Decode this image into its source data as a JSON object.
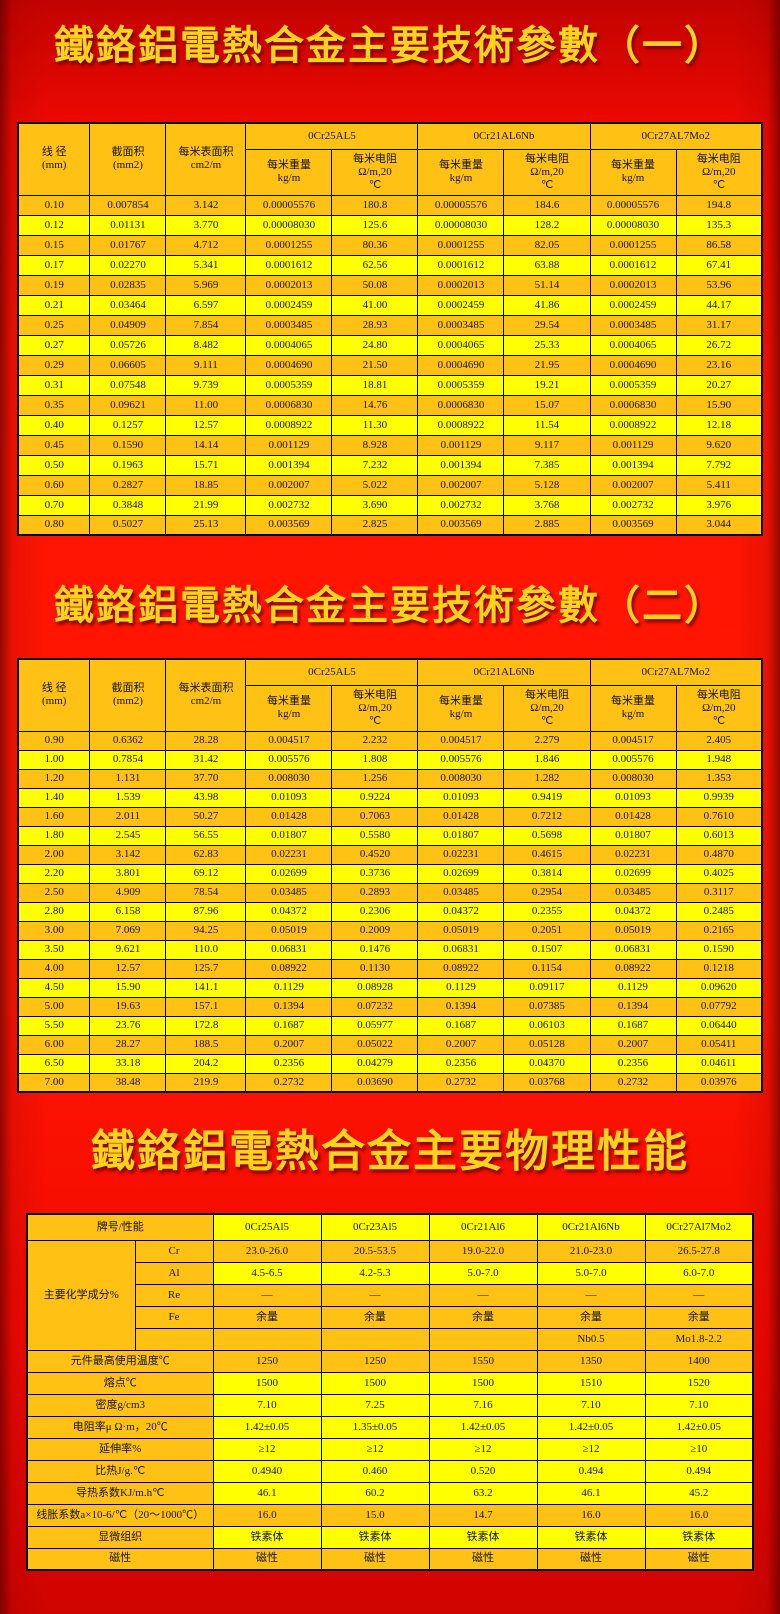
{
  "colors": {
    "background_red": "#EE0900",
    "title_gold": "#FFD21E",
    "row_yellow": "#FFFF00",
    "row_orange": "#FFC114",
    "border_black": "#000000"
  },
  "titles": {
    "section1": "鐵鉻鋁電熱合金主要技術參數（一）",
    "section2": "鐵鉻鋁電熱合金主要技術參數（二）",
    "section3": "鐵鉻鋁電熱合金主要物理性能"
  },
  "param_header": {
    "wire_diameter": "线 径\n(mm)",
    "cross_section": "截面积\n(mm2)",
    "surface_area_per_m": "每米表面积\ncm2/m",
    "groups": [
      "0Cr25AL5",
      "0Cr21AL6Nb",
      "0Cr27AL7Mo2"
    ],
    "weight_per_m": "每米重量\nkg/m",
    "resistance_per_m": "每米电阻\nΩ/m,20\n℃"
  },
  "table1": {
    "rows": [
      [
        "0.10",
        "0.007854",
        "3.142",
        "0.00005576",
        "180.8",
        "0.00005576",
        "184.6",
        "0.00005576",
        "194.8"
      ],
      [
        "0.12",
        "0.01131",
        "3.770",
        "0.00008030",
        "125.6",
        "0.00008030",
        "128.2",
        "0.00008030",
        "135.3"
      ],
      [
        "0.15",
        "0.01767",
        "4.712",
        "0.0001255",
        "80.36",
        "0.0001255",
        "82.05",
        "0.0001255",
        "86.58"
      ],
      [
        "0.17",
        "0.02270",
        "5.341",
        "0.0001612",
        "62.56",
        "0.0001612",
        "63.88",
        "0.0001612",
        "67.41"
      ],
      [
        "0.19",
        "0.02835",
        "5.969",
        "0.0002013",
        "50.08",
        "0.0002013",
        "51.14",
        "0.0002013",
        "53.96"
      ],
      [
        "0.21",
        "0.03464",
        "6.597",
        "0.0002459",
        "41.00",
        "0.0002459",
        "41.86",
        "0.0002459",
        "44.17"
      ],
      [
        "0.25",
        "0.04909",
        "7.854",
        "0.0003485",
        "28.93",
        "0.0003485",
        "29.54",
        "0.0003485",
        "31.17"
      ],
      [
        "0.27",
        "0.05726",
        "8.482",
        "0.0004065",
        "24.80",
        "0.0004065",
        "25.33",
        "0.0004065",
        "26.72"
      ],
      [
        "0.29",
        "0.06605",
        "9.111",
        "0.0004690",
        "21.50",
        "0.0004690",
        "21.95",
        "0.0004690",
        "23.16"
      ],
      [
        "0.31",
        "0.07548",
        "9.739",
        "0.0005359",
        "18.81",
        "0.0005359",
        "19.21",
        "0.0005359",
        "20.27"
      ],
      [
        "0.35",
        "0.09621",
        "11.00",
        "0.0006830",
        "14.76",
        "0.0006830",
        "15.07",
        "0.0006830",
        "15.90"
      ],
      [
        "0.40",
        "0.1257",
        "12.57",
        "0.0008922",
        "11.30",
        "0.0008922",
        "11.54",
        "0.0008922",
        "12.18"
      ],
      [
        "0.45",
        "0.1590",
        "14.14",
        "0.001129",
        "8.928",
        "0.001129",
        "9.117",
        "0.001129",
        "9.620"
      ],
      [
        "0.50",
        "0.1963",
        "15.71",
        "0.001394",
        "7.232",
        "0.001394",
        "7.385",
        "0.001394",
        "7.792"
      ],
      [
        "0.60",
        "0.2827",
        "18.85",
        "0.002007",
        "5.022",
        "0.002007",
        "5.128",
        "0.002007",
        "5.411"
      ],
      [
        "0.70",
        "0.3848",
        "21.99",
        "0.002732",
        "3.690",
        "0.002732",
        "3.768",
        "0.002732",
        "3.976"
      ],
      [
        "0.80",
        "0.5027",
        "25.13",
        "0.003569",
        "2.825",
        "0.003569",
        "2.885",
        "0.003569",
        "3.044"
      ]
    ]
  },
  "table2": {
    "rows": [
      [
        "0.90",
        "0.6362",
        "28.28",
        "0.004517",
        "2.232",
        "0.004517",
        "2.279",
        "0.004517",
        "2.405"
      ],
      [
        "1.00",
        "0.7854",
        "31.42",
        "0.005576",
        "1.808",
        "0.005576",
        "1.846",
        "0.005576",
        "1.948"
      ],
      [
        "1.20",
        "1.131",
        "37.70",
        "0.008030",
        "1.256",
        "0.008030",
        "1.282",
        "0.008030",
        "1.353"
      ],
      [
        "1.40",
        "1.539",
        "43.98",
        "0.01093",
        "0.9224",
        "0.01093",
        "0.9419",
        "0.01093",
        "0.9939"
      ],
      [
        "1.60",
        "2.011",
        "50.27",
        "0.01428",
        "0.7063",
        "0.01428",
        "0.7212",
        "0.01428",
        "0.7610"
      ],
      [
        "1.80",
        "2.545",
        "56.55",
        "0.01807",
        "0.5580",
        "0.01807",
        "0.5698",
        "0.01807",
        "0.6013"
      ],
      [
        "2.00",
        "3.142",
        "62.83",
        "0.02231",
        "0.4520",
        "0.02231",
        "0.4615",
        "0.02231",
        "0.4870"
      ],
      [
        "2.20",
        "3.801",
        "69.12",
        "0.02699",
        "0.3736",
        "0.02699",
        "0.3814",
        "0.02699",
        "0.4025"
      ],
      [
        "2.50",
        "4.909",
        "78.54",
        "0.03485",
        "0.2893",
        "0.03485",
        "0.2954",
        "0.03485",
        "0.3117"
      ],
      [
        "2.80",
        "6.158",
        "87.96",
        "0.04372",
        "0.2306",
        "0.04372",
        "0.2355",
        "0.04372",
        "0.2485"
      ],
      [
        "3.00",
        "7.069",
        "94.25",
        "0.05019",
        "0.2009",
        "0.05019",
        "0.2051",
        "0.05019",
        "0.2165"
      ],
      [
        "3.50",
        "9.621",
        "110.0",
        "0.06831",
        "0.1476",
        "0.06831",
        "0.1507",
        "0.06831",
        "0.1590"
      ],
      [
        "4.00",
        "12.57",
        "125.7",
        "0.08922",
        "0.1130",
        "0.08922",
        "0.1154",
        "0.08922",
        "0.1218"
      ],
      [
        "4.50",
        "15.90",
        "141.1",
        "0.1129",
        "0.08928",
        "0.1129",
        "0.09117",
        "0.1129",
        "0.09620"
      ],
      [
        "5.00",
        "19.63",
        "157.1",
        "0.1394",
        "0.07232",
        "0.1394",
        "0.07385",
        "0.1394",
        "0.07792"
      ],
      [
        "5.50",
        "23.76",
        "172.8",
        "0.1687",
        "0.05977",
        "0.1687",
        "0.06103",
        "0.1687",
        "0.06440"
      ],
      [
        "6.00",
        "28.27",
        "188.5",
        "0.2007",
        "0.05022",
        "0.2007",
        "0.05128",
        "0.2007",
        "0.05411"
      ],
      [
        "6.50",
        "33.18",
        "204.2",
        "0.2356",
        "0.04279",
        "0.2356",
        "0.04370",
        "0.2356",
        "0.04611"
      ],
      [
        "7.00",
        "38.48",
        "219.9",
        "0.2732",
        "0.03690",
        "0.2732",
        "0.03768",
        "0.2732",
        "0.03976"
      ]
    ]
  },
  "table3": {
    "corner_label": "牌号/性能",
    "grades": [
      "0Cr25Al5",
      "0Cr23Al5",
      "0Cr21Al6",
      "0Cr21Al6Nb",
      "0Cr27Al7Mo2"
    ],
    "chemistry_label": "主要化学成分%",
    "chem_rows": [
      {
        "element": "Cr",
        "shade": "o",
        "values": [
          "23.0-26.0",
          "20.5-53.5",
          "19.0-22.0",
          "21.0-23.0",
          "26.5-27.8"
        ]
      },
      {
        "element": "Al",
        "shade": "y",
        "values": [
          "4.5-6.5",
          "4.2-5.3",
          "5.0-7.0",
          "5.0-7.0",
          "6.0-7.0"
        ]
      },
      {
        "element": "Re",
        "shade": "o",
        "values": [
          "—",
          "—",
          "—",
          "—",
          "—"
        ]
      },
      {
        "element": "Fe",
        "shade": "o",
        "values": [
          "余量",
          "余量",
          "余量",
          "余量",
          "余量"
        ]
      },
      {
        "element": "",
        "shade": "o",
        "values": [
          "",
          "",
          "",
          "Nb0.5",
          "Mo1.8-2.2"
        ]
      }
    ],
    "property_rows": [
      {
        "label": "元件最高使用温度℃",
        "shade": "o",
        "values": [
          "1250",
          "1250",
          "1550",
          "1350",
          "1400"
        ]
      },
      {
        "label": "熔点℃",
        "shade": "y",
        "values": [
          "1500",
          "1500",
          "1500",
          "1510",
          "1520"
        ]
      },
      {
        "label": "密度g/cm3",
        "shade": "y",
        "values": [
          "7.10",
          "7.25",
          "7.16",
          "7.10",
          "7.10"
        ]
      },
      {
        "label": "电阻率μ Ω·m，20℃",
        "shade": "y",
        "values": [
          "1.42±0.05",
          "1.35±0.05",
          "1.42±0.05",
          "1.42±0.05",
          "1.42±0.05"
        ]
      },
      {
        "label": "延伸率%",
        "shade": "y",
        "values": [
          "≥12",
          "≥12",
          "≥12",
          "≥12",
          "≥10"
        ]
      },
      {
        "label": "比热J/g.℃",
        "shade": "y",
        "values": [
          "0.4940",
          "0.460",
          "0.520",
          "0.494",
          "0.494"
        ]
      },
      {
        "label": "导热系数KJ/m.h℃",
        "shade": "y",
        "values": [
          "46.1",
          "60.2",
          "63.2",
          "46.1",
          "45.2"
        ]
      },
      {
        "label": "线胀系数a×10-6/℃（20～1000℃）",
        "shade": "o",
        "values": [
          "16.0",
          "15.0",
          "14.7",
          "16.0",
          "16.0"
        ]
      },
      {
        "label": "显微组织",
        "shade": "y",
        "values": [
          "铁素体",
          "铁素体",
          "铁素体",
          "铁素体",
          "铁素体"
        ]
      },
      {
        "label": "磁性",
        "shade": "o",
        "values": [
          "磁性",
          "磁性",
          "磁性",
          "磁性",
          "磁性"
        ]
      }
    ]
  }
}
